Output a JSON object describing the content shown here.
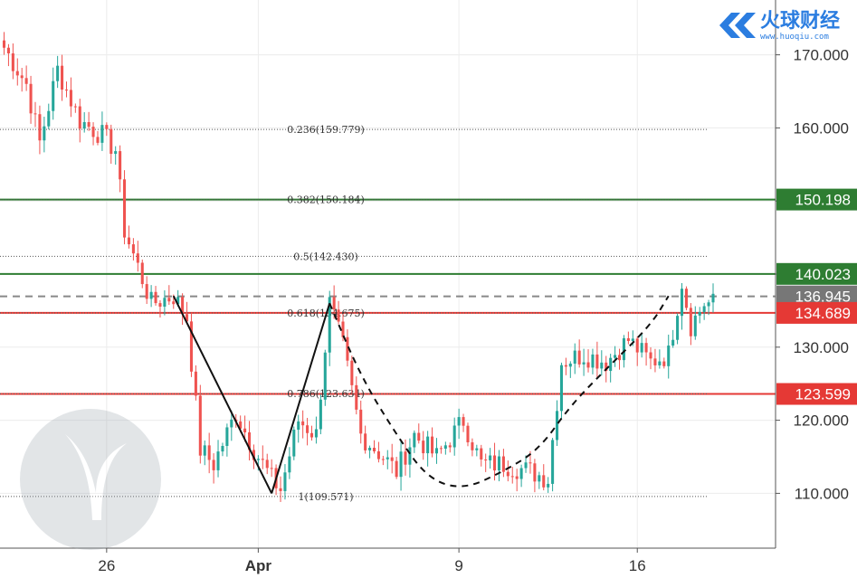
{
  "watermark": {
    "brand": "火球财经",
    "url": "www.huoqiu.com"
  },
  "colors": {
    "up": "#26a69a",
    "down": "#ef5350",
    "green_line": "#2e7d32",
    "red_line": "#e53935",
    "gray_line": "#888888",
    "grid": "#ececec",
    "pattern": "#111111",
    "tag_gray": "#777777"
  },
  "chart_data": {
    "type": "candlestick",
    "title": "",
    "xlabel": "",
    "ylabel": "",
    "ylim": [
      102.5,
      177.5
    ],
    "y_ticks": [
      110,
      120,
      130,
      140,
      150,
      160,
      170
    ],
    "y_tick_labels": [
      "110.000",
      "120.000",
      "130.000",
      "140.000",
      "150.000",
      "160.000",
      "170.000"
    ],
    "x_tick_labels": [
      {
        "label": "26",
        "bar": 23
      },
      {
        "label": "Apr",
        "bar": 57
      },
      {
        "label": "9",
        "bar": 102
      },
      {
        "label": "16",
        "bar": 142
      }
    ],
    "bar_count": 160,
    "anchors": [
      [
        0,
        171
      ],
      [
        5,
        166
      ],
      [
        8,
        158
      ],
      [
        12,
        168
      ],
      [
        17,
        161
      ],
      [
        22,
        159
      ],
      [
        25,
        157
      ],
      [
        27,
        146
      ],
      [
        30,
        141
      ],
      [
        33,
        136
      ],
      [
        38,
        137
      ],
      [
        41,
        134
      ],
      [
        44,
        116
      ],
      [
        47,
        114
      ],
      [
        52,
        121
      ],
      [
        56,
        116
      ],
      [
        60,
        112
      ],
      [
        62,
        110.5
      ],
      [
        66,
        120
      ],
      [
        70,
        118
      ],
      [
        73,
        136
      ],
      [
        76,
        130
      ],
      [
        80,
        118
      ],
      [
        85,
        115
      ],
      [
        88,
        113
      ],
      [
        92,
        118
      ],
      [
        97,
        115
      ],
      [
        103,
        120
      ],
      [
        107,
        114
      ],
      [
        112,
        114
      ],
      [
        118,
        113
      ],
      [
        122,
        112
      ],
      [
        125,
        128
      ],
      [
        130,
        129
      ],
      [
        135,
        128
      ],
      [
        140,
        131
      ],
      [
        145,
        128
      ],
      [
        149,
        129
      ],
      [
        152,
        139
      ],
      [
        154,
        133
      ],
      [
        157,
        136
      ]
    ],
    "horizontal_levels": [
      {
        "value": 150.198,
        "label": "150.198",
        "kind": "green"
      },
      {
        "value": 140.023,
        "label": "140.023",
        "kind": "green"
      },
      {
        "value": 136.945,
        "label": "136.945",
        "kind": "dashed"
      },
      {
        "value": 134.689,
        "label": "134.689",
        "kind": "red"
      },
      {
        "value": 123.599,
        "label": "123.599",
        "kind": "red"
      }
    ],
    "fib_levels": [
      {
        "value": 159.779,
        "label": "0.236(159.779)"
      },
      {
        "value": 150.184,
        "label": "0.382(150.184)"
      },
      {
        "value": 142.43,
        "label": "0.5(142.430)"
      },
      {
        "value": 134.675,
        "label": "0.618(134.675)"
      },
      {
        "value": 123.634,
        "label": "0.786(123.634)"
      },
      {
        "value": 109.571,
        "label": "1(109.571)"
      }
    ],
    "pattern_lines": [
      [
        [
          38,
          137
        ],
        [
          60,
          110
        ]
      ],
      [
        [
          60,
          110
        ],
        [
          73,
          136
        ]
      ]
    ],
    "pattern_dashed": [
      [
        73,
        136
      ],
      [
        80,
        126
      ],
      [
        88,
        118
      ],
      [
        95,
        112
      ],
      [
        103,
        110.5
      ],
      [
        112,
        113
      ],
      [
        120,
        116
      ],
      [
        127,
        122
      ],
      [
        135,
        127
      ],
      [
        145,
        133
      ],
      [
        149,
        137
      ]
    ]
  }
}
